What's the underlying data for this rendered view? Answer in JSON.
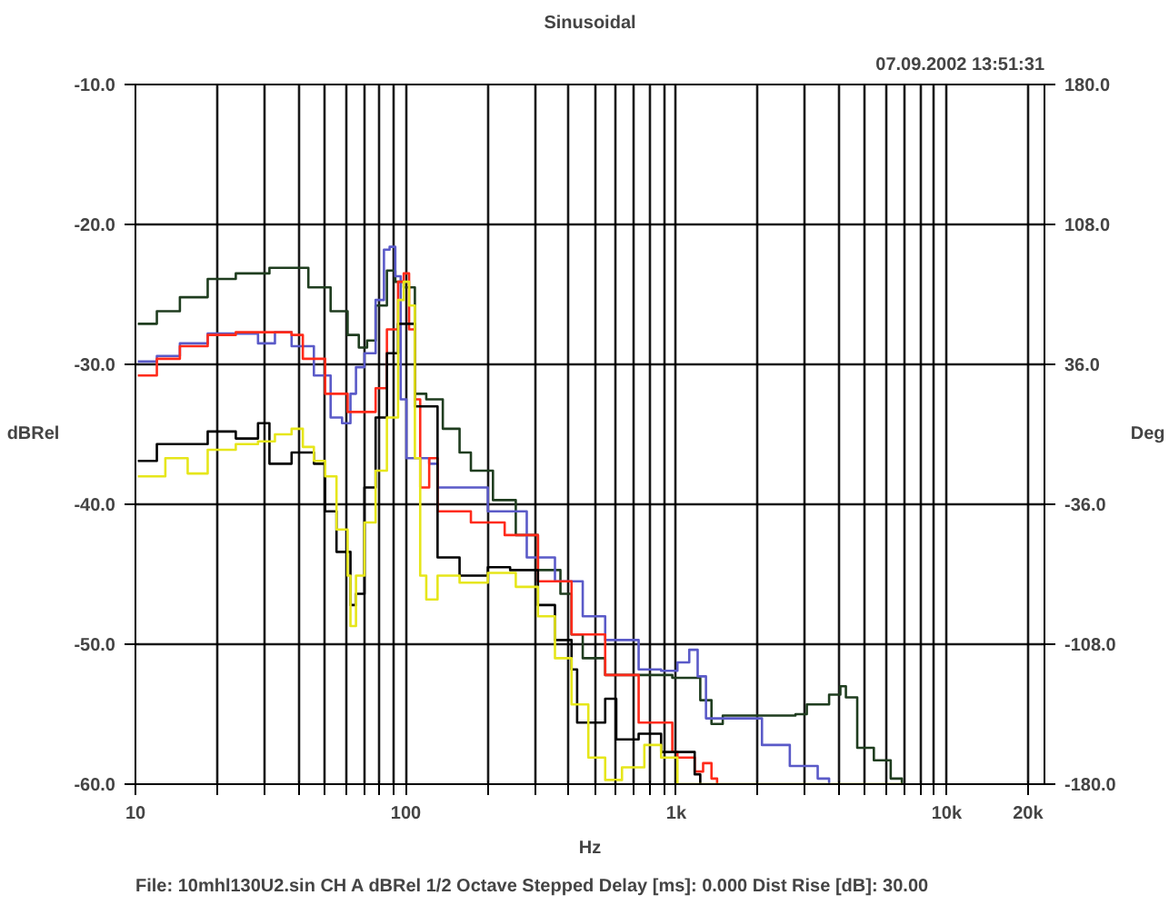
{
  "chart_data": {
    "type": "step",
    "title": "Sinusoidal",
    "ylabel": "dBRel",
    "y2label": "Deg",
    "xlabel": "Hz",
    "annotations": [
      "07.09.2002 13:51:31",
      "File: 10mhl130U2.sin     CH A   dBRel   1/2 Octave   Stepped   Delay [ms]: 0.000   Dist Rise [dB]: 30.00"
    ],
    "xlim": [
      10,
      23000
    ],
    "ylim": [
      -60,
      -10
    ],
    "y2lim": [
      -180,
      180
    ],
    "log": "x",
    "grid": true,
    "marker": "none",
    "line_style": "solid",
    "xticks": [
      10,
      {
        "value": 20,
        "label": null
      },
      {
        "value": 30,
        "label": null
      },
      {
        "value": 40,
        "label": null
      },
      {
        "value": 50,
        "label": null
      },
      {
        "value": 60,
        "label": null
      },
      {
        "value": 70,
        "label": null
      },
      {
        "value": 80,
        "label": null
      },
      {
        "value": 90,
        "label": null
      },
      100,
      {
        "value": 200,
        "label": null
      },
      {
        "value": 300,
        "label": null
      },
      {
        "value": 400,
        "label": null
      },
      {
        "value": 500,
        "label": null
      },
      {
        "value": 600,
        "label": null
      },
      {
        "value": 700,
        "label": null
      },
      {
        "value": 800,
        "label": null
      },
      {
        "value": 900,
        "label": null
      },
      {
        "value": 1000,
        "label": "1k"
      },
      {
        "value": 2000,
        "label": null
      },
      {
        "value": 3000,
        "label": null
      },
      {
        "value": 4000,
        "label": null
      },
      {
        "value": 5000,
        "label": null
      },
      {
        "value": 6000,
        "label": null
      },
      {
        "value": 7000,
        "label": null
      },
      {
        "value": 8000,
        "label": null
      },
      {
        "value": 9000,
        "label": null
      },
      {
        "value": 10000,
        "label": "10k"
      },
      {
        "value": 20000,
        "label": "20k"
      }
    ],
    "yticks": [
      {
        "value": -10,
        "label": "-10.0"
      },
      {
        "value": -20,
        "label": "-20.0"
      },
      {
        "value": -30,
        "label": "-30.0"
      },
      {
        "value": -40,
        "label": "-40.0"
      },
      {
        "value": -50,
        "label": "-50.0"
      },
      {
        "value": -60,
        "label": "-60.0"
      }
    ],
    "y2ticks": [
      {
        "value": 180,
        "label": "180.0"
      },
      {
        "value": 108,
        "label": "108.0"
      },
      {
        "value": 36,
        "label": "36.0"
      },
      {
        "value": -36,
        "label": "-36.0"
      },
      {
        "value": -108,
        "label": "-108.0"
      },
      {
        "value": -180,
        "label": "-180.0"
      }
    ],
    "series": [
      {
        "color": "#1f3d1f",
        "x": [
          10.2,
          12,
          14.6,
          18.5,
          23.5,
          31.3,
          36.1,
          43.6,
          52.7,
          60.9,
          67,
          71.9,
          77.3,
          85.1,
          91.4,
          98.2,
          108,
          119,
          137,
          158,
          174,
          210,
          255,
          308,
          373,
          410,
          451,
          546,
          967,
          1227,
          1350,
          1486,
          2760,
          3040,
          3675,
          4045,
          4240,
          4670,
          5380,
          6210,
          6830
        ],
        "values": [
          -27.1,
          -26.2,
          -25.2,
          -23.9,
          -23.5,
          -23.1,
          -23.1,
          -24.5,
          -26.2,
          -27.9,
          -28.8,
          -28.3,
          -25.8,
          -23.3,
          -24.1,
          -24.5,
          -32.1,
          -32.5,
          -34.6,
          -36.3,
          -37.6,
          -39.7,
          -42.2,
          -44.7,
          -46.4,
          -49.3,
          -51,
          -52.2,
          -52.4,
          -54,
          -55.7,
          -55.1,
          -55,
          -54.3,
          -53.6,
          -53,
          -53.8,
          -57.4,
          -58.3,
          -59.6,
          -60
        ]
      },
      {
        "color": "#5a5ac8",
        "x": [
          10.2,
          12,
          14.6,
          18.5,
          23.5,
          28.4,
          32.8,
          37.8,
          45.7,
          52.7,
          58.1,
          62.4,
          65.4,
          70.3,
          77.3,
          83,
          87.1,
          91.4,
          95.7,
          100.5,
          113,
          122,
          131,
          151,
          201,
          280,
          356,
          451,
          546,
          726,
          879,
          1010,
          1117,
          1200,
          1288,
          1560,
          2075,
          2630,
          3335,
          3675
        ],
        "values": [
          -29.8,
          -29.4,
          -28.5,
          -27.8,
          -27.8,
          -28.5,
          -27.7,
          -28.7,
          -30.8,
          -33.8,
          -34.2,
          -32.1,
          -30.2,
          -29.2,
          -25.4,
          -21.8,
          -21.6,
          -23.7,
          -32.5,
          -36.7,
          -36.7,
          -37.1,
          -38.8,
          -38.8,
          -40.5,
          -43.8,
          -45.5,
          -48,
          -49.7,
          -51.8,
          -51.9,
          -51.3,
          -50.4,
          -52.3,
          -55.3,
          -55.3,
          -57.2,
          -58.7,
          -59.6,
          -60
        ]
      },
      {
        "color": "#ff2a1a",
        "x": [
          10.2,
          12,
          14.6,
          18.5,
          23.5,
          31.3,
          37.8,
          41.6,
          50.3,
          60.9,
          70.3,
          77.3,
          85.1,
          93.6,
          98.2,
          102.8,
          108,
          113,
          122,
          131,
          174,
          232,
          308,
          410,
          546,
          726,
          967,
          1010,
          1170,
          1257,
          1350,
          1416
        ],
        "values": [
          -30.8,
          -29.6,
          -28.7,
          -27.9,
          -27.7,
          -27.7,
          -27.9,
          -29.6,
          -32.1,
          -33.4,
          -33.4,
          -31.7,
          -27.5,
          -24.1,
          -23.5,
          -27.5,
          -32.5,
          -38.8,
          -36.7,
          -40.5,
          -41.3,
          -42.2,
          -45.5,
          -49.3,
          -52.2,
          -55.6,
          -57.7,
          -58.1,
          -59.1,
          -58.5,
          -59.6,
          -60
        ]
      },
      {
        "color": "#000000",
        "x": [
          10.2,
          12,
          14.6,
          18.5,
          23.5,
          28.4,
          31.3,
          37.8,
          45.7,
          50.3,
          55.4,
          62.4,
          65.4,
          70.3,
          77.3,
          85.1,
          93.6,
          108,
          131,
          137,
          158,
          201,
          243,
          308,
          356,
          410,
          430,
          496,
          546,
          600,
          726,
          879,
          1170,
          1227
        ],
        "values": [
          -36.9,
          -35.7,
          -35.7,
          -34.8,
          -35.3,
          -34.2,
          -37.1,
          -36.3,
          -37.1,
          -40.5,
          -43.4,
          -47.2,
          -46.4,
          -38.8,
          -33.8,
          -29.2,
          -27.1,
          -33,
          -43.8,
          -43.8,
          -45.1,
          -44.5,
          -44.7,
          -47.2,
          -49.7,
          -51.8,
          -55.6,
          -55.6,
          -53.9,
          -56.8,
          -56.4,
          -57.7,
          -59.3,
          -60
        ]
      },
      {
        "color": "#e6e61a",
        "x": [
          10.2,
          12.9,
          15.6,
          18.5,
          23.5,
          28.4,
          32.8,
          37.8,
          41.6,
          45.7,
          50.3,
          55.4,
          60.9,
          62.4,
          65.4,
          70.3,
          77.3,
          85.1,
          93.6,
          98.2,
          102.8,
          108,
          113,
          119,
          131,
          158,
          201,
          255,
          308,
          356,
          410,
          473,
          546,
          630,
          762,
          879,
          1010,
          6830
        ],
        "values": [
          -38,
          -36.7,
          -37.8,
          -36.1,
          -35.7,
          -35.5,
          -35,
          -34.6,
          -35.9,
          -36.9,
          -38,
          -41.8,
          -45.1,
          -48.7,
          -45.1,
          -41.3,
          -37.6,
          -33.8,
          -25.4,
          -24.1,
          -25.8,
          -36.7,
          -45.1,
          -46.8,
          -45.1,
          -45.6,
          -44.9,
          -45.9,
          -48,
          -51,
          -54.3,
          -58.1,
          -59.7,
          -58.8,
          -57.2,
          -58.1,
          -60,
          -60
        ]
      }
    ]
  }
}
